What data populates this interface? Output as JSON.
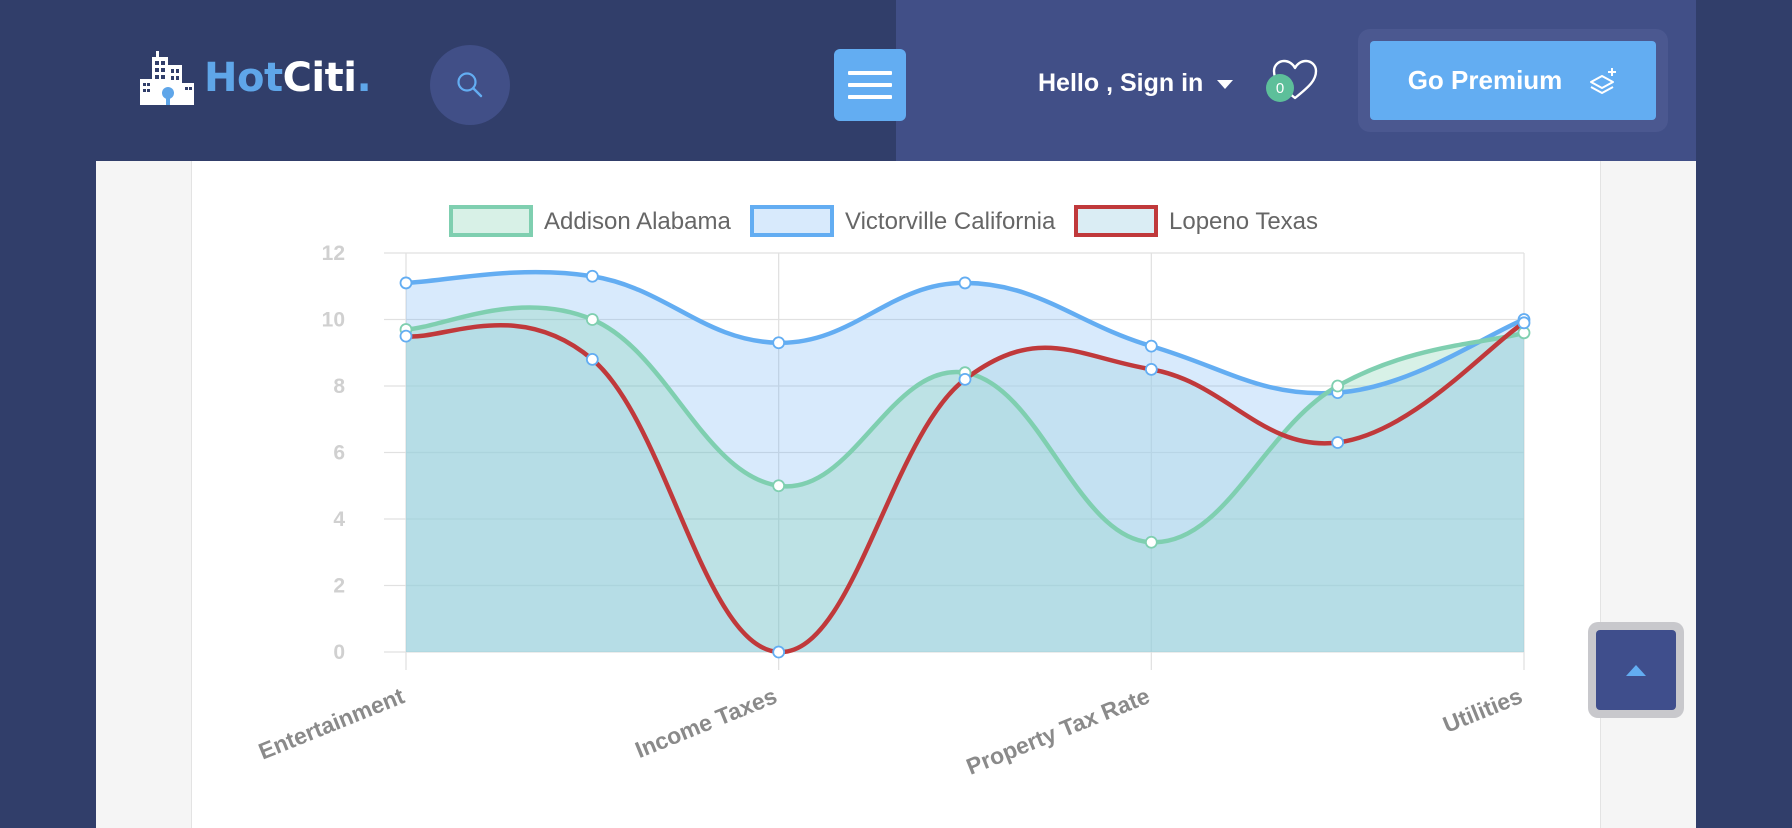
{
  "brand": {
    "hot": "HotCiti",
    "citi": "Citi",
    "dot": "."
  },
  "header": {
    "greeting": "Hello , Sign in",
    "wishlist_count": "0",
    "premium_label": "Go Premium"
  },
  "icons": {
    "logo": "city-buildings-icon",
    "search": "search-icon",
    "menu": "hamburger-menu-icon",
    "dropdown": "caret-down-icon",
    "wishlist": "heart-icon",
    "premium": "stack-plus-icon",
    "scroll_top": "caret-up-icon"
  },
  "colors": {
    "navy": "#313e6a",
    "nav_right": "#414f87",
    "accent_blue": "#63adf2",
    "green": "#5dbf9a"
  },
  "chart_data": {
    "type": "area",
    "title": "",
    "xlabel": "",
    "ylabel": "",
    "ylim": [
      0,
      12
    ],
    "yticks": [
      "0",
      "2",
      "4",
      "6",
      "8",
      "10",
      "12"
    ],
    "x": [
      0,
      1,
      2,
      3,
      4,
      5,
      6
    ],
    "categories": [
      "Entertainment",
      "",
      "Income Taxes",
      "",
      "Property Tax Rate",
      "",
      "Utilities"
    ],
    "tick_labels": [
      "Entertainment",
      "Income Taxes",
      "Property Tax Rate",
      "Utilities"
    ],
    "legend_position": "top",
    "grid": true,
    "series": [
      {
        "name": "Addison Alabama",
        "color": "#7fcfb0",
        "fill": "rgba(127,207,176,0.30)",
        "values": [
          9.7,
          10.0,
          5.0,
          8.4,
          3.3,
          8.0,
          9.6
        ]
      },
      {
        "name": "Victorville California",
        "color": "#63adf2",
        "fill": "rgba(99,173,242,0.25)",
        "values": [
          11.1,
          11.3,
          9.3,
          11.1,
          9.2,
          7.8,
          10.0
        ]
      },
      {
        "name": "Lopeno Texas",
        "color": "#c0393b",
        "fill": "rgba(173,216,230,0.45)",
        "values": [
          9.5,
          8.8,
          0.0,
          8.2,
          8.5,
          6.3,
          9.9
        ]
      }
    ]
  }
}
